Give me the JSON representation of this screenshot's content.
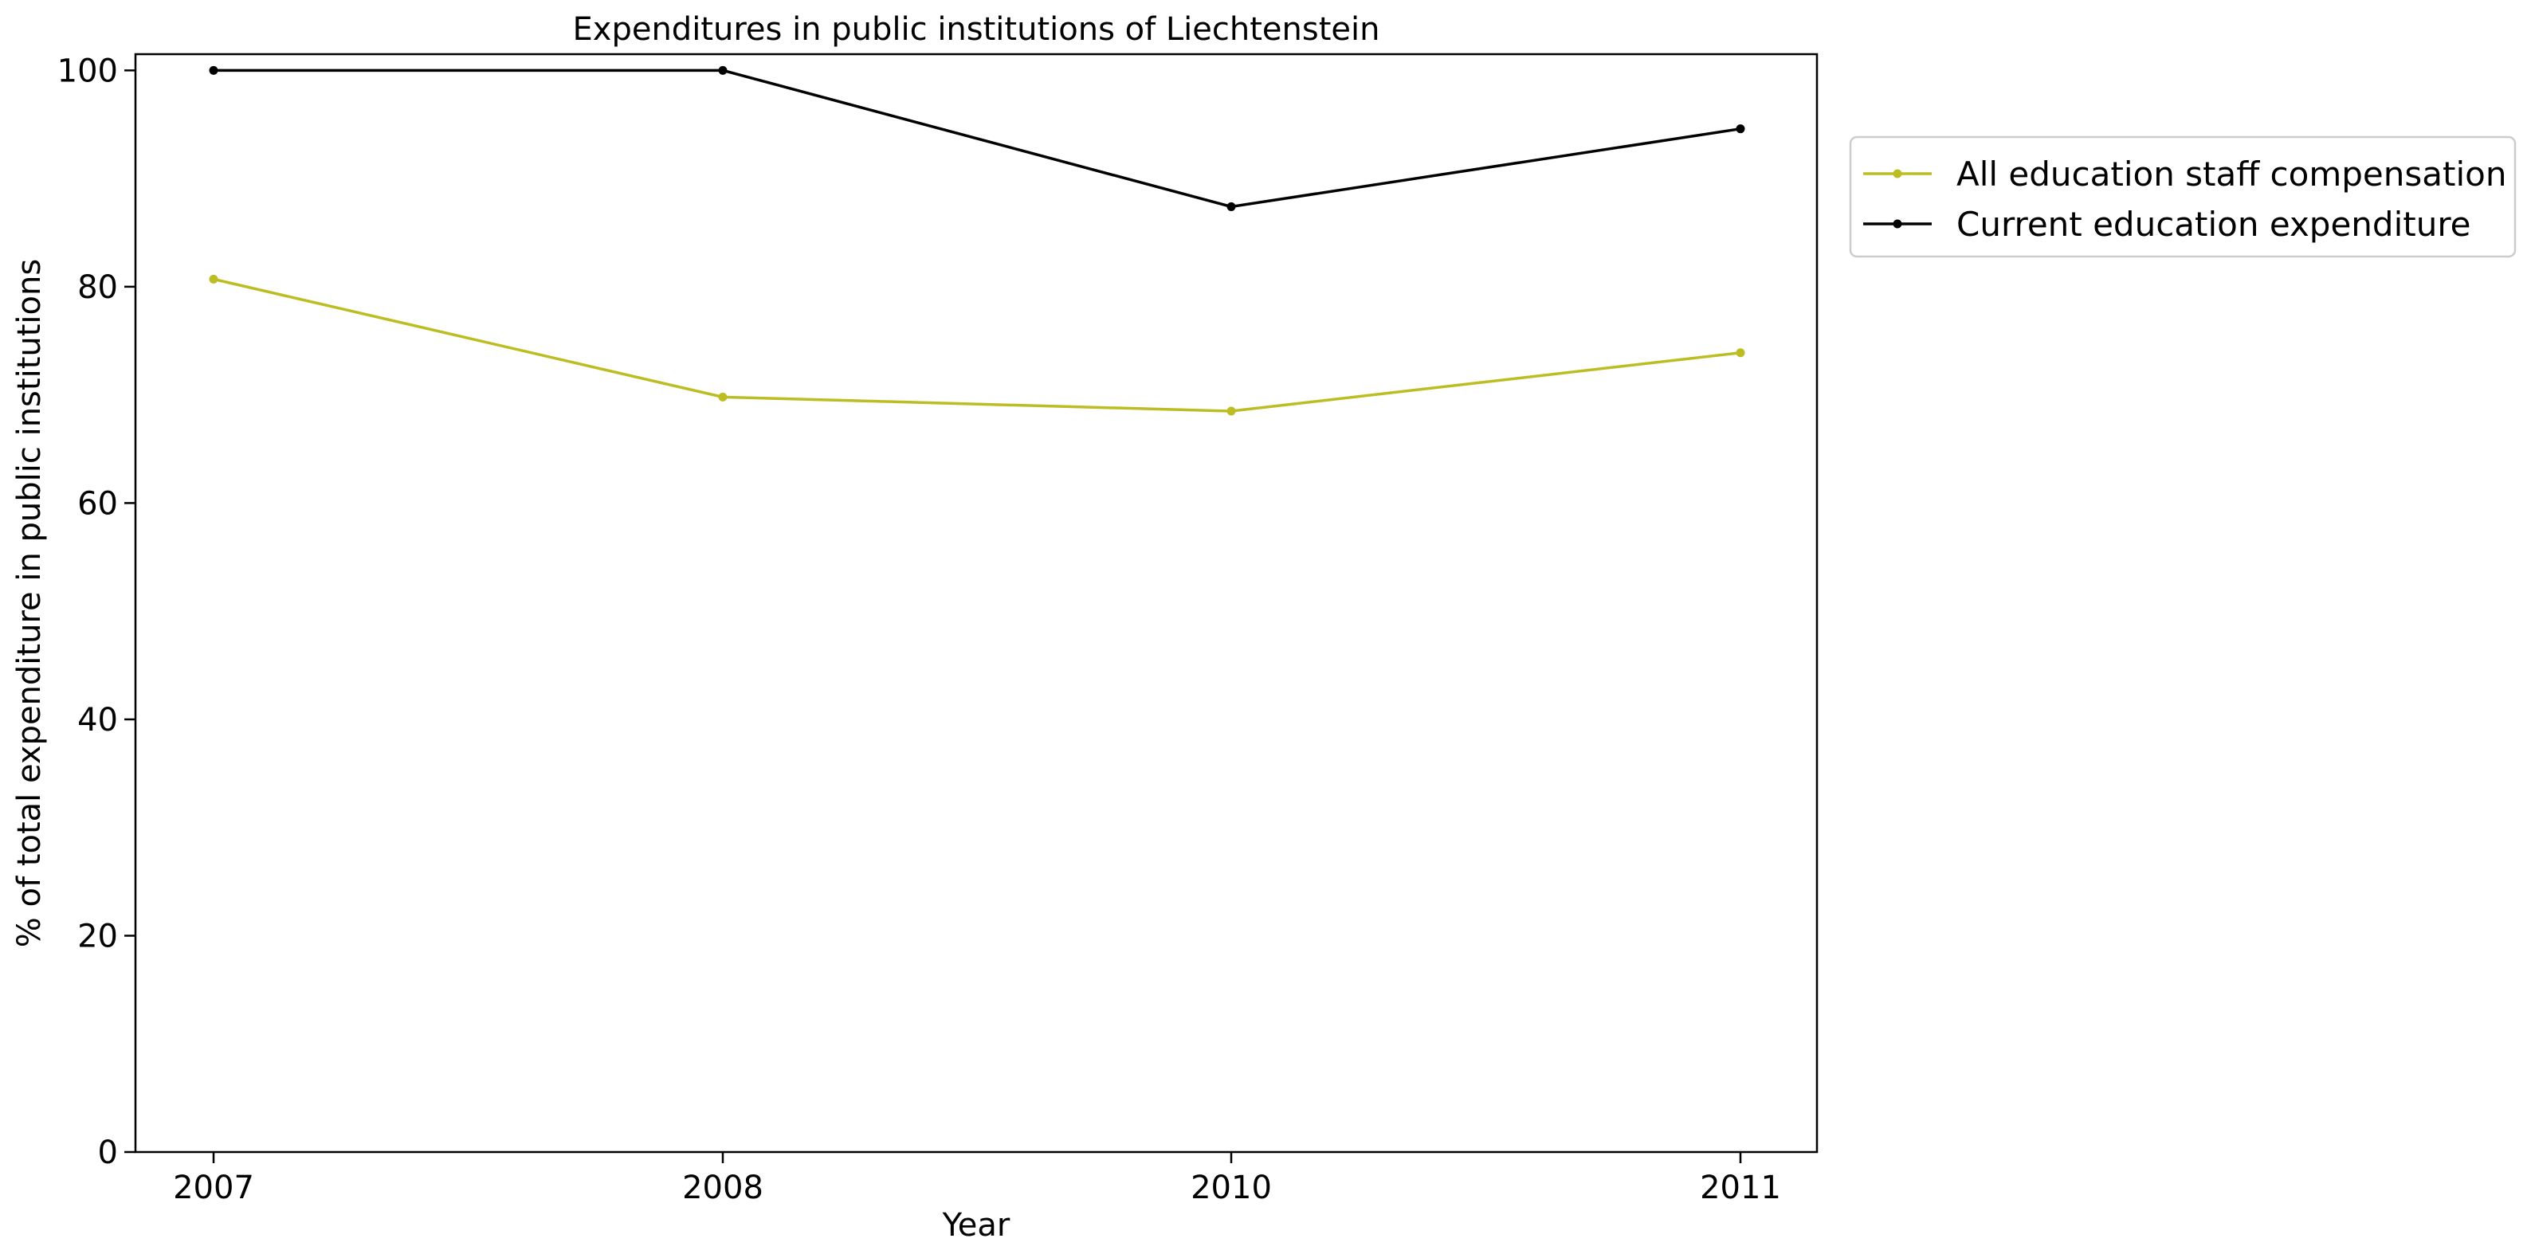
{
  "chart_data": {
    "type": "line",
    "title": "Expenditures in public institutions of Liechtenstein",
    "xlabel": "Year",
    "ylabel": "% of total expenditure in public institutions",
    "categories": [
      "2007",
      "2008",
      "2010",
      "2011"
    ],
    "ylim": [
      0,
      101.5
    ],
    "yticks": [
      0,
      20,
      40,
      60,
      80,
      100
    ],
    "grid": false,
    "legend_position": "right, outside plot area, top",
    "series": [
      {
        "name": "All education staff compensation",
        "color": "#bcbd22",
        "values": [
          80.7,
          69.8,
          68.5,
          73.9
        ]
      },
      {
        "name": "Current education expenditure",
        "color": "#000000",
        "values": [
          100.0,
          100.0,
          87.4,
          94.6
        ]
      }
    ]
  }
}
